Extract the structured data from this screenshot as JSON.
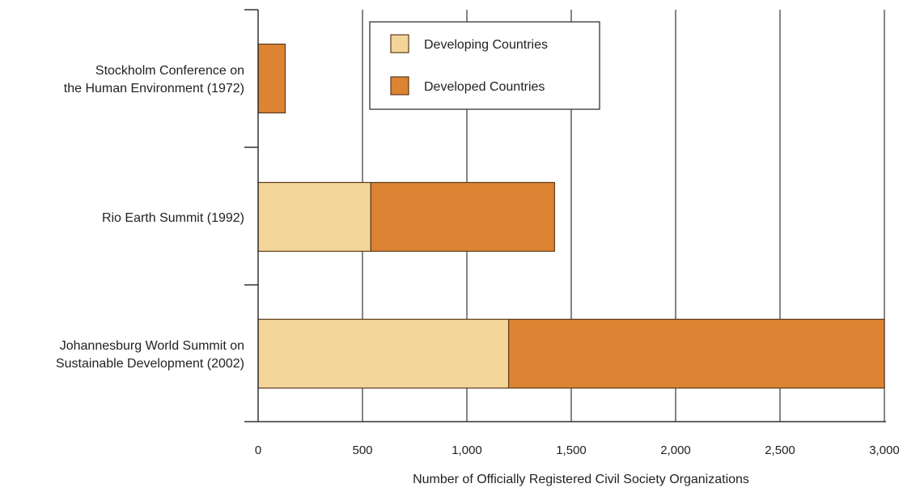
{
  "chart_data": {
    "type": "bar",
    "orientation": "horizontal",
    "stacked": true,
    "categories": [
      [
        "Stockholm Conference on",
        "the Human Environment (1972)"
      ],
      [
        "Rio Earth Summit (1992)"
      ],
      [
        "Johannesburg World Summit on",
        "Sustainable Development (2002)"
      ]
    ],
    "series": [
      {
        "name": "Developing Countries",
        "color": "#f3d59a",
        "values": [
          0,
          540,
          1200
        ]
      },
      {
        "name": "Developed Countries",
        "color": "#dc8433",
        "values": [
          130,
          880,
          1800
        ]
      }
    ],
    "xlabel": "Number of Officially Registered Civil Society Organizations",
    "ylabel": "",
    "xlim": [
      0,
      3000
    ],
    "xticks": [
      0,
      500,
      1000,
      1500,
      2000,
      2500,
      3000
    ],
    "xtick_labels": [
      "0",
      "500",
      "1,000",
      "1,500",
      "2,000",
      "2,500",
      "3,000"
    ],
    "grid": "vertical",
    "legend_position": "top-center"
  }
}
